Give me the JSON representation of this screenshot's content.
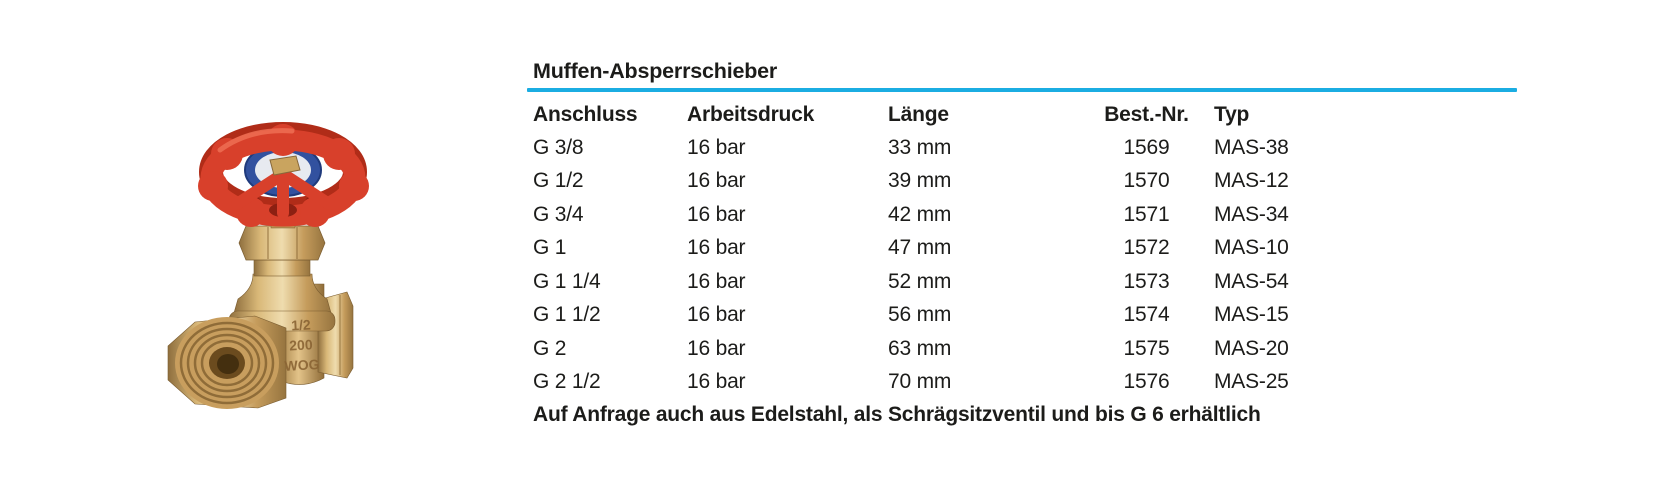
{
  "accent_color": "#1badе2",
  "theme": {
    "rule_color": "#1badE2",
    "text_color": "#1c1c1a"
  },
  "product_image": {
    "markings": {
      "size": "1/2",
      "pressure": "200",
      "rating": "WOG"
    }
  },
  "section": {
    "title": "Muffen-Absperrschieber",
    "table": {
      "columns": [
        "Anschluss",
        "Arbeitsdruck",
        "Länge",
        "Best.-Nr.",
        "Typ"
      ],
      "rows": [
        [
          "G 3/8",
          "16 bar",
          "33 mm",
          "1569",
          "MAS-38"
        ],
        [
          "G 1/2",
          "16 bar",
          "39 mm",
          "1570",
          "MAS-12"
        ],
        [
          "G 3/4",
          "16 bar",
          "42 mm",
          "1571",
          "MAS-34"
        ],
        [
          "G 1",
          "16 bar",
          "47 mm",
          "1572",
          "MAS-10"
        ],
        [
          "G 1 1/4",
          "16 bar",
          "52 mm",
          "1573",
          "MAS-54"
        ],
        [
          "G 1 1/2",
          "16 bar",
          "56 mm",
          "1574",
          "MAS-15"
        ],
        [
          "G 2",
          "16 bar",
          "63 mm",
          "1575",
          "MAS-20"
        ],
        [
          "G 2 1/2",
          "16 bar",
          "70 mm",
          "1576",
          "MAS-25"
        ]
      ]
    },
    "footnote": "Auf Anfrage auch aus Edelstahl, als Schrägsitzventil und bis G 6 erhältlich"
  }
}
